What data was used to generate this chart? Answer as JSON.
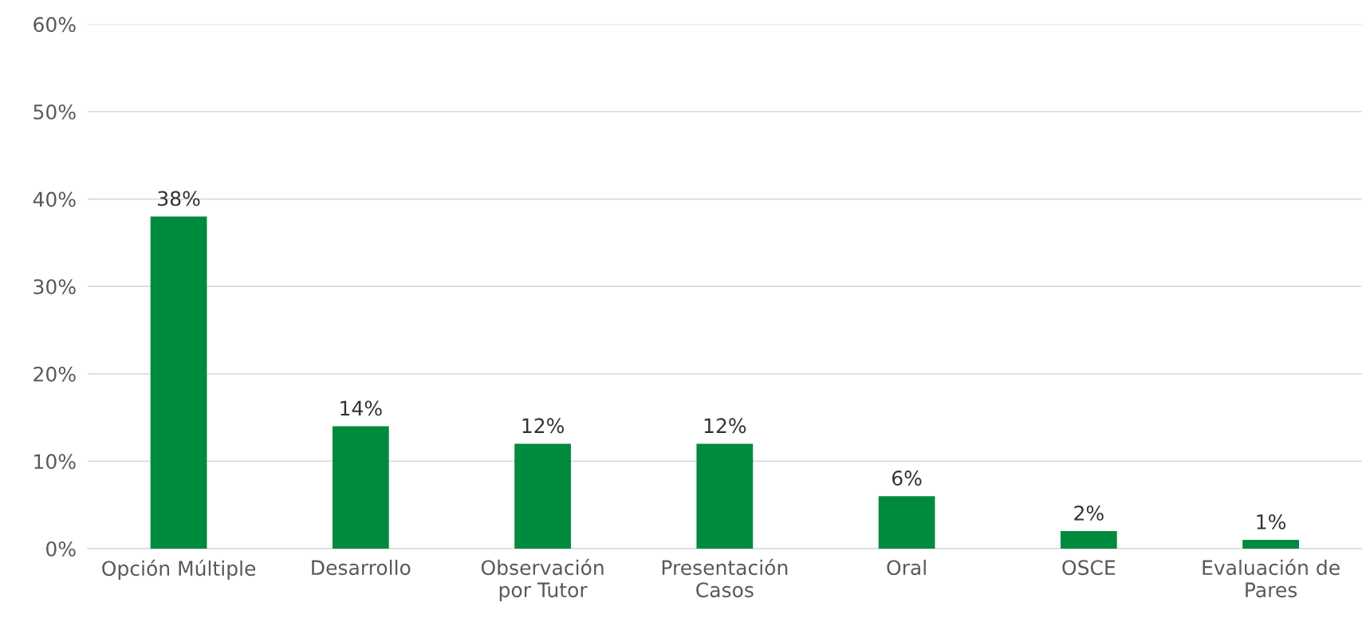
{
  "chart_data": {
    "type": "bar",
    "categories": [
      "Opción Múltiple",
      "Desarrollo",
      "Observación\npor Tutor",
      "Presentación\nCasos",
      "Oral",
      "OSCE",
      "Evaluación de\nPares"
    ],
    "values": [
      38,
      14,
      12,
      12,
      6,
      2,
      1
    ],
    "value_labels": [
      "38%",
      "14%",
      "12%",
      "12%",
      "6%",
      "2%",
      "1%"
    ],
    "color": "#008a3e",
    "ylim": [
      0,
      60
    ],
    "yticks": [
      {
        "value": 0,
        "label": "0%"
      },
      {
        "value": 10,
        "label": "10%"
      },
      {
        "value": 20,
        "label": "20%"
      },
      {
        "value": 30,
        "label": "30%"
      },
      {
        "value": 40,
        "label": "40%"
      },
      {
        "value": 50,
        "label": "50%"
      },
      {
        "value": 60,
        "label": "60%"
      }
    ],
    "grid": "y",
    "legend": false
  }
}
